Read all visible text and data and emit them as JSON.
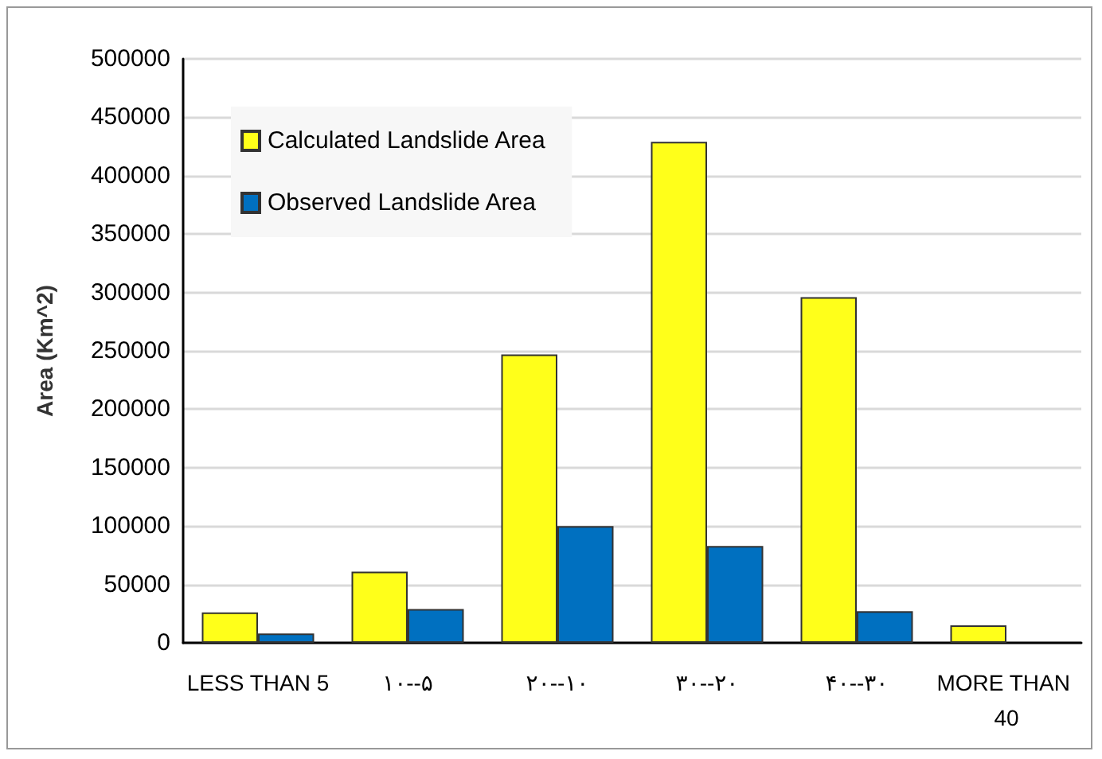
{
  "chart_data": {
    "type": "bar",
    "ylabel": "Area (Km^2)",
    "categories": [
      "LESS THAN 5",
      "۱۰--۵",
      "۲۰--۱۰",
      "۳۰--۲۰",
      "۴۰--۳۰",
      "MORE THAN 40"
    ],
    "series": [
      {
        "name": "Calculated Landslide Area",
        "color": "#ffff1a",
        "values": [
          26000,
          61000,
          247000,
          429000,
          296000,
          15000
        ]
      },
      {
        "name": "Observed Landslide Area",
        "color": "#0070c0",
        "values": [
          8000,
          29000,
          100000,
          83000,
          27000,
          null
        ]
      }
    ],
    "ylim": [
      0,
      500000
    ],
    "yticks": [
      0,
      50000,
      100000,
      150000,
      200000,
      250000,
      300000,
      350000,
      400000,
      450000,
      500000
    ],
    "grid": "y",
    "legend": "top left"
  }
}
